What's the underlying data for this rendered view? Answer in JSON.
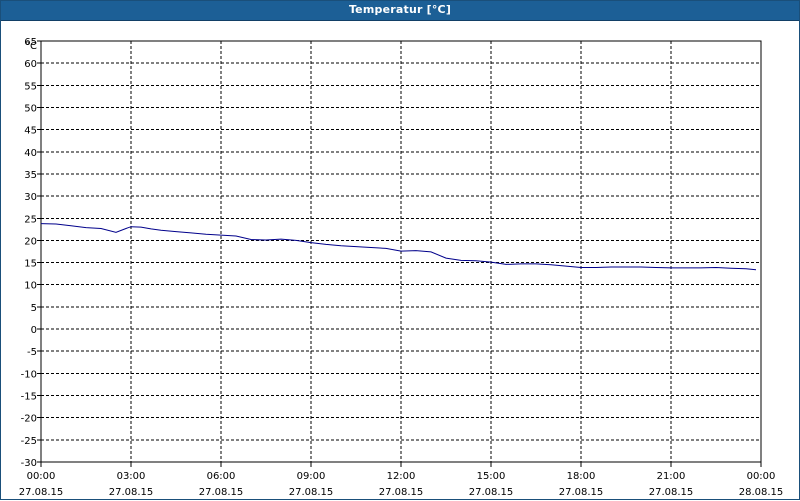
{
  "window": {
    "title": "Temperatur [°C]"
  },
  "chart_data": {
    "type": "line",
    "title": "Temperatur [°C]",
    "ylabel": "°C",
    "xlabel": "",
    "ylim": [
      -30,
      65
    ],
    "y_ticks": [
      65,
      60,
      55,
      50,
      45,
      40,
      35,
      30,
      25,
      20,
      15,
      10,
      5,
      0,
      -5,
      -10,
      -15,
      -20,
      -25,
      -30
    ],
    "xlim": [
      "27.08.15 00:00",
      "28.08.15 00:00"
    ],
    "x_ticks": [
      {
        "time": "00:00",
        "date": "27.08.15"
      },
      {
        "time": "03:00",
        "date": "27.08.15"
      },
      {
        "time": "06:00",
        "date": "27.08.15"
      },
      {
        "time": "09:00",
        "date": "27.08.15"
      },
      {
        "time": "12:00",
        "date": "27.08.15"
      },
      {
        "time": "15:00",
        "date": "27.08.15"
      },
      {
        "time": "18:00",
        "date": "27.08.15"
      },
      {
        "time": "21:00",
        "date": "27.08.15"
      },
      {
        "time": "00:00",
        "date": "28.08.15"
      }
    ],
    "grid": true,
    "line_color": "#00008b",
    "series": [
      {
        "x": [
          "27.08.15 00:00",
          "27.08.15 00:30",
          "27.08.15 01:00",
          "27.08.15 01:30",
          "27.08.15 02:00",
          "27.08.15 02:30",
          "27.08.15 02:50",
          "27.08.15 03:00",
          "27.08.15 03:20",
          "27.08.15 03:40",
          "27.08.15 04:00",
          "27.08.15 04:30",
          "27.08.15 05:00",
          "27.08.15 05:30",
          "27.08.15 06:00",
          "27.08.15 06:30",
          "27.08.15 07:00",
          "27.08.15 07:30",
          "27.08.15 08:00",
          "27.08.15 08:30",
          "27.08.15 09:00",
          "27.08.15 09:30",
          "27.08.15 10:00",
          "27.08.15 10:30",
          "27.08.15 11:00",
          "27.08.15 11:30",
          "27.08.15 12:00",
          "27.08.15 12:30",
          "27.08.15 13:00",
          "27.08.15 13:30",
          "27.08.15 14:00",
          "27.08.15 14:30",
          "27.08.15 15:00",
          "27.08.15 15:30",
          "27.08.15 16:00",
          "27.08.15 16:30",
          "27.08.15 17:00",
          "27.08.15 17:30",
          "27.08.15 18:00",
          "27.08.15 18:30",
          "27.08.15 19:00",
          "27.08.15 19:30",
          "27.08.15 20:00",
          "27.08.15 20:30",
          "27.08.15 21:00",
          "27.08.15 21:30",
          "27.08.15 22:00",
          "27.08.15 22:30",
          "27.08.15 23:00",
          "27.08.15 23:30",
          "27.08.15 23:50"
        ],
        "y": [
          23.8,
          23.7,
          23.3,
          22.9,
          22.7,
          21.8,
          22.7,
          23.1,
          23.0,
          22.6,
          22.3,
          22.0,
          21.7,
          21.4,
          21.2,
          21.0,
          20.2,
          20.1,
          20.3,
          20.0,
          19.5,
          19.1,
          18.8,
          18.6,
          18.4,
          18.2,
          17.6,
          17.7,
          17.4,
          16.0,
          15.5,
          15.4,
          15.1,
          14.6,
          14.7,
          14.7,
          14.5,
          14.2,
          13.9,
          13.9,
          14.0,
          14.0,
          14.0,
          13.9,
          13.8,
          13.8,
          13.8,
          13.9,
          13.7,
          13.6,
          13.4
        ]
      }
    ]
  }
}
